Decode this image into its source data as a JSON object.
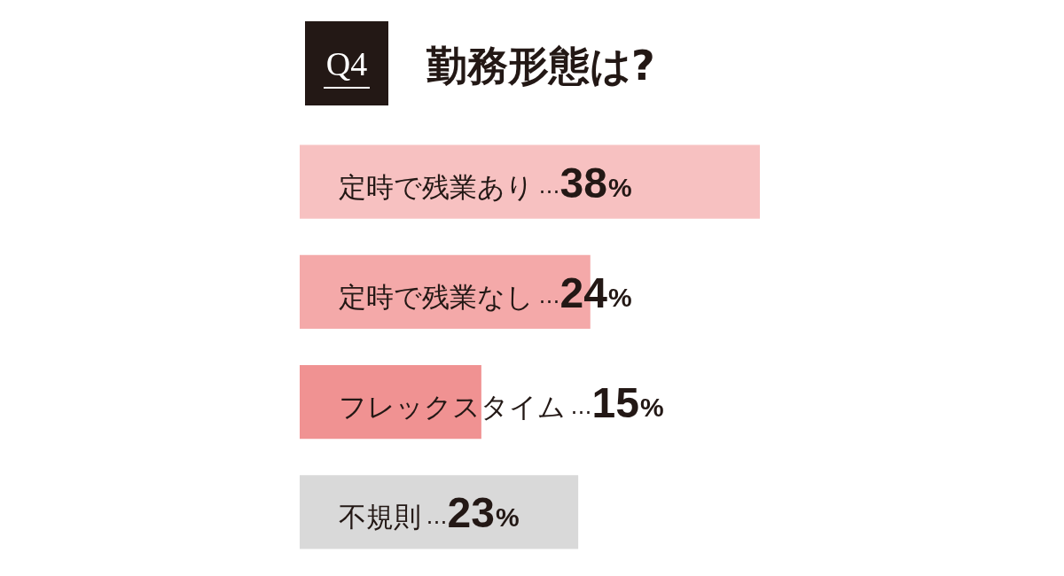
{
  "chart_data": {
    "type": "bar",
    "orientation": "horizontal",
    "title": "勤務形態は?",
    "annotations": [
      "Q4"
    ],
    "categories": [
      "定時で残業あり",
      "定時で残業なし",
      "フレックスタイム",
      "不規則"
    ],
    "values": [
      38,
      24,
      15,
      23
    ],
    "colors": [
      "#f7c1c1",
      "#f4a9a9",
      "#f09292",
      "#d9d9d9"
    ],
    "value_labels": [
      "…38%",
      "…24%",
      "…15%",
      "…23%"
    ]
  }
}
